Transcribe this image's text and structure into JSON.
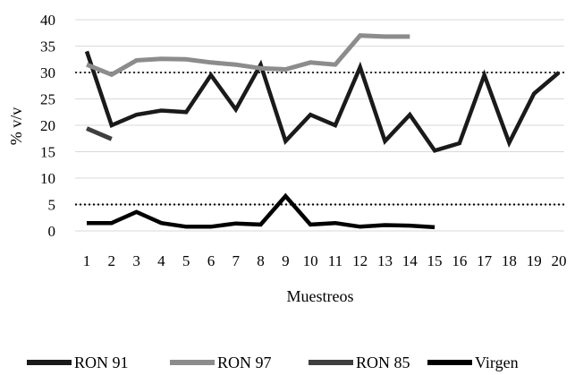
{
  "chart_data": {
    "type": "line",
    "xlabel": "Muestreos",
    "ylabel": "% v/v",
    "x": [
      1,
      2,
      3,
      4,
      5,
      6,
      7,
      8,
      9,
      10,
      11,
      12,
      13,
      14,
      15,
      16,
      17,
      18,
      19,
      20
    ],
    "ylim": [
      0,
      40
    ],
    "yticks": [
      0,
      5,
      10,
      15,
      20,
      25,
      30,
      35,
      40
    ],
    "grid": "horizontal",
    "reference_lines": [
      {
        "y": 30,
        "style": "dotted",
        "color": "#333333"
      },
      {
        "y": 5,
        "style": "dotted",
        "color": "#000000"
      }
    ],
    "legend_position": "bottom",
    "series": [
      {
        "name": "RON 91",
        "color": "#1a1a1a",
        "values": [
          34,
          20,
          22,
          22.8,
          22.5,
          29.5,
          23,
          31.5,
          17,
          22,
          20,
          31,
          17,
          22,
          15.2,
          16.6,
          29.5,
          16.7,
          26,
          30
        ]
      },
      {
        "name": "RON 97",
        "color": "#8c8c8c",
        "values": [
          31.5,
          29.6,
          32.3,
          32.6,
          32.5,
          31.9,
          31.5,
          30.8,
          30.6,
          31.9,
          31.5,
          37,
          36.8,
          36.8,
          null,
          null,
          null,
          null,
          null,
          null
        ]
      },
      {
        "name": "RON 85",
        "color": "#3f3f3f",
        "values": [
          19.4,
          17.4,
          null,
          null,
          null,
          null,
          null,
          null,
          null,
          null,
          null,
          null,
          null,
          null,
          null,
          null,
          null,
          null,
          null,
          null
        ]
      },
      {
        "name": "Virgen",
        "color": "#000000",
        "values": [
          1.5,
          1.5,
          3.6,
          1.5,
          0.8,
          0.8,
          1.4,
          1.2,
          6.6,
          1.2,
          1.5,
          0.8,
          1.1,
          1.0,
          0.7,
          null,
          null,
          null,
          null,
          null
        ]
      }
    ]
  }
}
